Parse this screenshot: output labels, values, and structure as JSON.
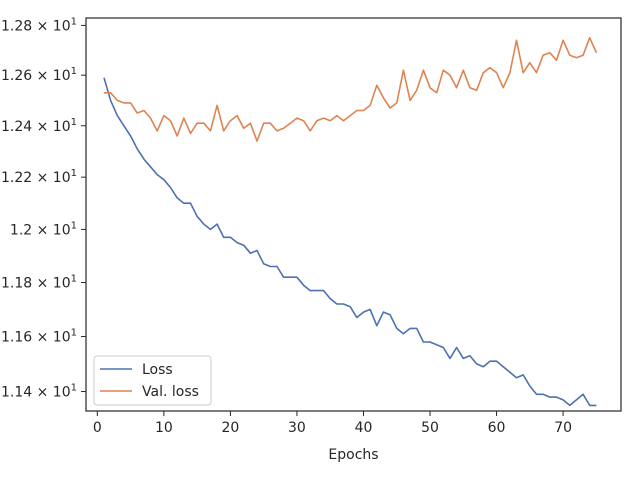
{
  "chart_data": {
    "type": "line",
    "xlabel": "Epochs",
    "ylabel": "",
    "xlim": [
      -1.7,
      78.7
    ],
    "ylim": [
      11.33,
      12.83
    ],
    "y_scale": "log",
    "grid": false,
    "legend_position": "lower-left",
    "x_ticks": [
      0,
      10,
      20,
      30,
      40,
      50,
      60,
      70
    ],
    "y_ticks": [
      {
        "value": 11.4,
        "label_base": "1.14",
        "label_exp": "1"
      },
      {
        "value": 11.6,
        "label_base": "1.16",
        "label_exp": "1"
      },
      {
        "value": 11.8,
        "label_base": "1.18",
        "label_exp": "1"
      },
      {
        "value": 12.0,
        "label_base": "1.2",
        "label_exp": "1"
      },
      {
        "value": 12.2,
        "label_base": "1.22",
        "label_exp": "1"
      },
      {
        "value": 12.4,
        "label_base": "1.24",
        "label_exp": "1"
      },
      {
        "value": 12.6,
        "label_base": "1.26",
        "label_exp": "1"
      },
      {
        "value": 12.8,
        "label_base": "1.28",
        "label_exp": "1"
      }
    ],
    "series": [
      {
        "name": "Loss",
        "color": "#4c72b0",
        "x": [
          1,
          2,
          3,
          4,
          5,
          6,
          7,
          8,
          9,
          10,
          11,
          12,
          13,
          14,
          15,
          16,
          17,
          18,
          19,
          20,
          21,
          22,
          23,
          24,
          25,
          26,
          27,
          28,
          29,
          30,
          31,
          32,
          33,
          34,
          35,
          36,
          37,
          38,
          39,
          40,
          41,
          42,
          43,
          44,
          45,
          46,
          47,
          48,
          49,
          50,
          51,
          52,
          53,
          54,
          55,
          56,
          57,
          58,
          59,
          60,
          61,
          62,
          63,
          64,
          65,
          66,
          67,
          68,
          69,
          70,
          71,
          72,
          73,
          74,
          75
        ],
        "values": [
          12.59,
          12.5,
          12.44,
          12.4,
          12.36,
          12.31,
          12.27,
          12.24,
          12.21,
          12.19,
          12.16,
          12.12,
          12.1,
          12.1,
          12.05,
          12.02,
          12.0,
          12.02,
          11.97,
          11.97,
          11.95,
          11.94,
          11.91,
          11.92,
          11.87,
          11.86,
          11.86,
          11.82,
          11.82,
          11.82,
          11.79,
          11.77,
          11.77,
          11.77,
          11.74,
          11.72,
          11.72,
          11.71,
          11.67,
          11.69,
          11.7,
          11.64,
          11.69,
          11.68,
          11.63,
          11.61,
          11.63,
          11.63,
          11.58,
          11.58,
          11.57,
          11.56,
          11.52,
          11.56,
          11.52,
          11.53,
          11.5,
          11.49,
          11.51,
          11.51,
          11.49,
          11.47,
          11.45,
          11.46,
          11.42,
          11.39,
          11.39,
          11.38,
          11.38,
          11.37,
          11.35,
          11.37,
          11.39,
          11.35,
          11.35
        ]
      },
      {
        "name": "Val. loss",
        "color": "#dd8452",
        "x": [
          1,
          2,
          3,
          4,
          5,
          6,
          7,
          8,
          9,
          10,
          11,
          12,
          13,
          14,
          15,
          16,
          17,
          18,
          19,
          20,
          21,
          22,
          23,
          24,
          25,
          26,
          27,
          28,
          29,
          30,
          31,
          32,
          33,
          34,
          35,
          36,
          37,
          38,
          39,
          40,
          41,
          42,
          43,
          44,
          45,
          46,
          47,
          48,
          49,
          50,
          51,
          52,
          53,
          54,
          55,
          56,
          57,
          58,
          59,
          60,
          61,
          62,
          63,
          64,
          65,
          66,
          67,
          68,
          69,
          70,
          71,
          72,
          73,
          74,
          75
        ],
        "values": [
          12.53,
          12.53,
          12.5,
          12.49,
          12.49,
          12.45,
          12.46,
          12.43,
          12.38,
          12.44,
          12.42,
          12.36,
          12.43,
          12.37,
          12.41,
          12.41,
          12.38,
          12.48,
          12.38,
          12.42,
          12.44,
          12.39,
          12.41,
          12.34,
          12.41,
          12.41,
          12.38,
          12.39,
          12.41,
          12.43,
          12.42,
          12.38,
          12.42,
          12.43,
          12.42,
          12.44,
          12.42,
          12.44,
          12.46,
          12.46,
          12.48,
          12.56,
          12.51,
          12.47,
          12.49,
          12.62,
          12.5,
          12.54,
          12.62,
          12.55,
          12.53,
          12.62,
          12.6,
          12.55,
          12.62,
          12.55,
          12.54,
          12.61,
          12.63,
          12.61,
          12.55,
          12.61,
          12.74,
          12.61,
          12.65,
          12.61,
          12.68,
          12.69,
          12.66,
          12.74,
          12.68,
          12.67,
          12.68,
          12.75,
          12.69
        ]
      }
    ]
  }
}
